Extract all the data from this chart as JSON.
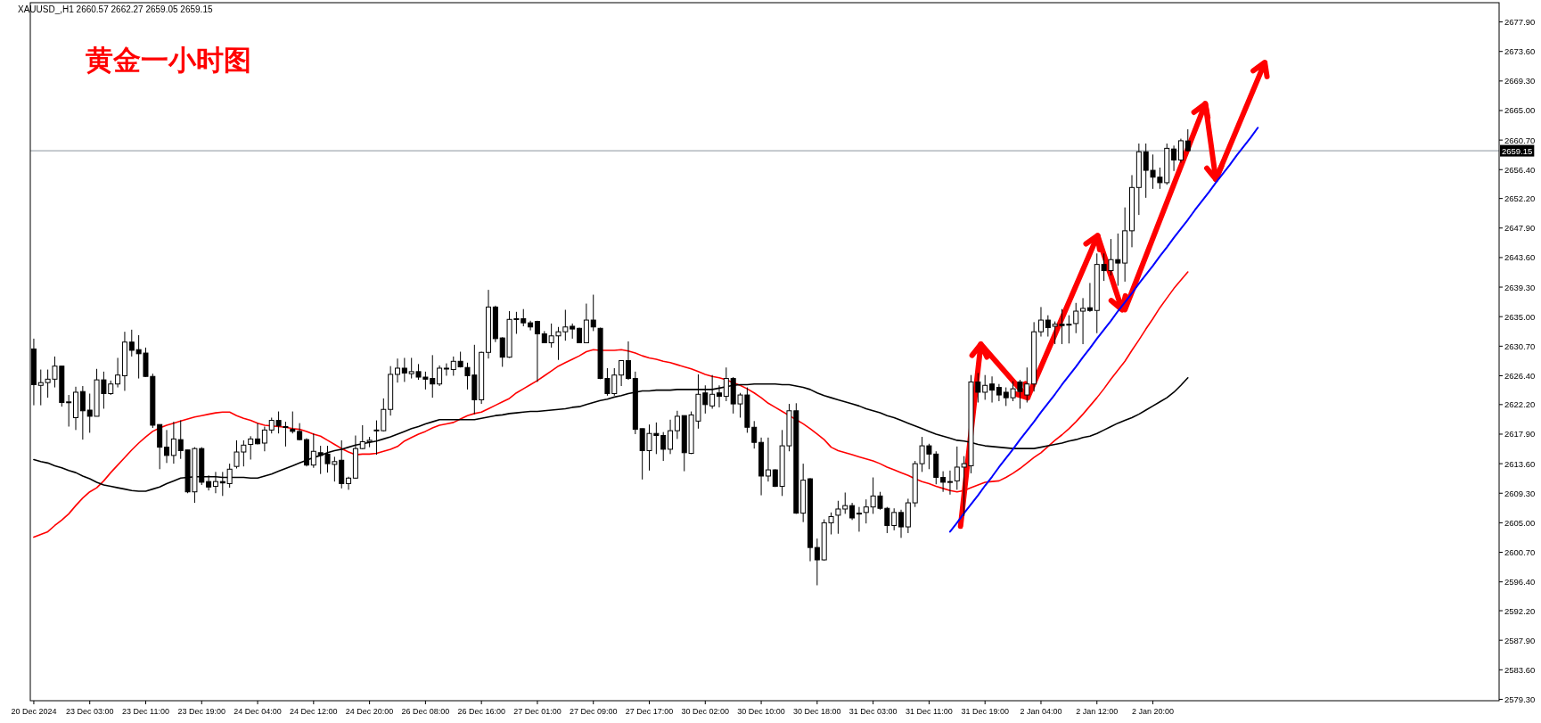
{
  "chart_data": {
    "type": "candlestick",
    "title": "黄金一小时图",
    "annotations": [
      "XAUUSD_,H1  2660.57 2662.27 2659.05 2659.15"
    ],
    "categories": [
      "20 Dec 2024",
      null,
      null,
      null,
      null,
      null,
      null,
      null,
      "23 Dec 03:00",
      null,
      null,
      null,
      null,
      null,
      null,
      null,
      "23 Dec 11:00",
      null,
      null,
      null,
      null,
      null,
      null,
      null,
      "23 Dec 19:00",
      null,
      null,
      null,
      null,
      null,
      null,
      null,
      "24 Dec 04:00",
      null,
      null,
      null,
      null,
      null,
      null,
      null,
      "24 Dec 12:00",
      null,
      null,
      null,
      null,
      null,
      null,
      null,
      "24 Dec 20:00",
      null,
      null,
      null,
      null,
      null,
      null,
      null,
      "26 Dec 08:00",
      null,
      null,
      null,
      null,
      null,
      null,
      null,
      "26 Dec 16:00",
      null,
      null,
      null,
      null,
      null,
      null,
      null,
      "27 Dec 01:00",
      null,
      null,
      null,
      null,
      null,
      null,
      null,
      "27 Dec 09:00",
      null,
      null,
      null,
      null,
      null,
      null,
      null,
      "27 Dec 17:00",
      null,
      null,
      null,
      null,
      null,
      null,
      null,
      "30 Dec 02:00",
      null,
      null,
      null,
      null,
      null,
      null,
      null,
      "30 Dec 10:00",
      null,
      null,
      null,
      null,
      null,
      null,
      null,
      "30 Dec 18:00",
      null,
      null,
      null,
      null,
      null,
      null,
      null,
      "31 Dec 03:00",
      null,
      null,
      null,
      null,
      null,
      null,
      null,
      "31 Dec 11:00",
      null,
      null,
      null,
      null,
      null,
      null,
      null,
      "31 Dec 19:00",
      null,
      null,
      null,
      null,
      null,
      null,
      null,
      "2 Jan 04:00",
      null,
      null,
      null,
      null,
      null,
      null,
      null,
      "2 Jan 12:00",
      null,
      null,
      null,
      null,
      null,
      null,
      null,
      "2 Jan 20:00",
      null,
      null,
      null,
      null,
      null,
      null,
      null,
      null,
      null,
      null,
      null,
      null,
      null,
      null,
      null,
      null,
      null,
      null,
      null,
      null,
      null,
      null,
      null,
      null,
      null,
      null,
      null,
      null,
      null,
      null,
      null,
      null,
      null,
      null,
      null,
      null,
      null,
      null,
      null,
      null,
      null,
      null,
      null,
      null,
      null,
      null,
      null,
      null,
      null
    ],
    "ohlc": [
      [
        2630.3,
        2631.8,
        2622.1,
        2625.1
      ],
      [
        2625.0,
        2627.3,
        2622.1,
        2625.4
      ],
      [
        2625.4,
        2627.3,
        2623.2,
        2625.9
      ],
      [
        2625.9,
        2629.2,
        2624.7,
        2627.8
      ],
      [
        2627.8,
        2627.8,
        2621.9,
        2622.5
      ],
      [
        2622.6,
        2623.6,
        2619.0,
        2622.6
      ],
      [
        2620.3,
        2624.8,
        2618.5,
        2624.0
      ],
      [
        2624.1,
        2624.9,
        2617.1,
        2621.3
      ],
      [
        2621.4,
        2623.8,
        2618.1,
        2620.5
      ],
      [
        2620.5,
        2627.4,
        2620.5,
        2625.8
      ],
      [
        2625.8,
        2627.0,
        2621.6,
        2623.8
      ],
      [
        2623.8,
        2625.7,
        2623.6,
        2625.2
      ],
      [
        2625.2,
        2629.0,
        2624.7,
        2626.5
      ],
      [
        2626.4,
        2632.8,
        2624.2,
        2631.3
      ],
      [
        2631.3,
        2633.1,
        2629.2,
        2630.1
      ],
      [
        2630.2,
        2632.3,
        2626.0,
        2629.6
      ],
      [
        2629.7,
        2630.5,
        2626.2,
        2626.3
      ],
      [
        2626.3,
        2626.7,
        2618.8,
        2619.2
      ],
      [
        2619.3,
        2619.3,
        2612.8,
        2616.0
      ],
      [
        2616.0,
        2618.5,
        2613.7,
        2614.8
      ],
      [
        2614.8,
        2619.7,
        2613.6,
        2617.2
      ],
      [
        2617.1,
        2619.9,
        2614.3,
        2615.5
      ],
      [
        2615.6,
        2615.6,
        2609.3,
        2609.5
      ],
      [
        2609.5,
        2616.0,
        2607.9,
        2615.8
      ],
      [
        2615.8,
        2616.0,
        2610.5,
        2610.9
      ],
      [
        2611.0,
        2611.9,
        2609.7,
        2610.2
      ],
      [
        2610.3,
        2612.4,
        2609.3,
        2611.0
      ],
      [
        2611.0,
        2612.4,
        2608.9,
        2610.8
      ],
      [
        2610.7,
        2613.6,
        2610.1,
        2612.8
      ],
      [
        2613.2,
        2617.0,
        2612.9,
        2615.3
      ],
      [
        2615.3,
        2617.0,
        2613.2,
        2616.3
      ],
      [
        2616.4,
        2617.6,
        2614.2,
        2617.2
      ],
      [
        2617.2,
        2619.5,
        2616.4,
        2616.5
      ],
      [
        2616.6,
        2619.0,
        2615.4,
        2618.5
      ],
      [
        2618.5,
        2620.3,
        2618.0,
        2619.9
      ],
      [
        2619.9,
        2621.2,
        2618.0,
        2619.1
      ],
      [
        2619.0,
        2619.7,
        2616.1,
        2619.0
      ],
      [
        2618.6,
        2621.2,
        2618.0,
        2618.3
      ],
      [
        2618.3,
        2619.5,
        2617.0,
        2617.1
      ],
      [
        2617.1,
        2617.3,
        2613.2,
        2613.4
      ],
      [
        2613.4,
        2618.0,
        2613.0,
        2615.4
      ],
      [
        2615.2,
        2616.2,
        2612.1,
        2614.8
      ],
      [
        2615.0,
        2616.2,
        2612.3,
        2613.6
      ],
      [
        2613.5,
        2614.6,
        2611.0,
        2613.9
      ],
      [
        2614.1,
        2617.0,
        2610.0,
        2610.7
      ],
      [
        2610.7,
        2611.7,
        2609.8,
        2611.5
      ],
      [
        2611.5,
        2617.7,
        2611.4,
        2615.8
      ],
      [
        2615.8,
        2619.2,
        2615.7,
        2616.8
      ],
      [
        2616.8,
        2617.5,
        2616.0,
        2617.0
      ],
      [
        2618.4,
        2619.9,
        2614.9,
        2618.5
      ],
      [
        2618.4,
        2623.1,
        2618.3,
        2621.5
      ],
      [
        2621.5,
        2627.8,
        2620.6,
        2626.6
      ],
      [
        2626.6,
        2628.9,
        2625.4,
        2627.5
      ],
      [
        2627.5,
        2629.0,
        2625.5,
        2626.8
      ],
      [
        2626.7,
        2629.0,
        2626.0,
        2627.0
      ],
      [
        2627.0,
        2628.1,
        2625.8,
        2626.2
      ],
      [
        2626.2,
        2627.0,
        2624.4,
        2625.9
      ],
      [
        2626.0,
        2629.4,
        2623.2,
        2625.2
      ],
      [
        2625.2,
        2627.9,
        2624.9,
        2627.5
      ],
      [
        2627.4,
        2628.2,
        2626.4,
        2627.5
      ],
      [
        2627.3,
        2629.2,
        2626.4,
        2628.5
      ],
      [
        2628.5,
        2629.9,
        2627.6,
        2627.7
      ],
      [
        2627.6,
        2628.3,
        2624.4,
        2626.4
      ],
      [
        2626.5,
        2630.9,
        2620.8,
        2622.9
      ],
      [
        2622.9,
        2629.9,
        2622.3,
        2629.8
      ],
      [
        2629.8,
        2638.9,
        2628.9,
        2636.4
      ],
      [
        2636.4,
        2636.6,
        2631.3,
        2631.8
      ],
      [
        2631.9,
        2632.0,
        2627.7,
        2629.1
      ],
      [
        2629.1,
        2635.8,
        2629.0,
        2634.6
      ],
      [
        2634.7,
        2635.7,
        2632.5,
        2634.7
      ],
      [
        2634.7,
        2636.1,
        2633.6,
        2634.1
      ],
      [
        2634.1,
        2634.4,
        2633.0,
        2633.5
      ],
      [
        2634.3,
        2634.4,
        2625.5,
        2632.5
      ],
      [
        2632.5,
        2632.9,
        2631.2,
        2631.2
      ],
      [
        2631.2,
        2634.0,
        2630.5,
        2632.2
      ],
      [
        2632.2,
        2633.5,
        2628.7,
        2632.8
      ],
      [
        2632.8,
        2636.0,
        2631.5,
        2633.5
      ],
      [
        2633.6,
        2634.0,
        2631.8,
        2633.2
      ],
      [
        2633.3,
        2633.4,
        2631.2,
        2631.2
      ],
      [
        2631.2,
        2636.9,
        2631.2,
        2634.5
      ],
      [
        2634.5,
        2638.2,
        2632.9,
        2633.5
      ],
      [
        2633.3,
        2633.4,
        2625.9,
        2626.0
      ],
      [
        2626.0,
        2627.5,
        2623.5,
        2623.8
      ],
      [
        2623.8,
        2627.5,
        2623.5,
        2626.5
      ],
      [
        2626.5,
        2628.6,
        2624.9,
        2628.6
      ],
      [
        2628.6,
        2631.4,
        2625.8,
        2626.0
      ],
      [
        2626.0,
        2627.0,
        2617.9,
        2618.6
      ],
      [
        2618.7,
        2618.7,
        2611.3,
        2615.5
      ],
      [
        2615.5,
        2619.3,
        2612.6,
        2618.0
      ],
      [
        2618.0,
        2619.6,
        2615.0,
        2617.7
      ],
      [
        2617.7,
        2618.2,
        2614.0,
        2615.7
      ],
      [
        2615.7,
        2620.0,
        2615.0,
        2618.4
      ],
      [
        2618.4,
        2621.3,
        2617.2,
        2620.5
      ],
      [
        2620.6,
        2620.6,
        2612.5,
        2615.2
      ],
      [
        2615.1,
        2621.2,
        2615.0,
        2620.7
      ],
      [
        2619.8,
        2626.6,
        2618.7,
        2623.7
      ],
      [
        2623.9,
        2625.0,
        2620.9,
        2622.2
      ],
      [
        2622.0,
        2626.5,
        2621.6,
        2623.7
      ],
      [
        2623.9,
        2625.0,
        2621.8,
        2623.4
      ],
      [
        2623.4,
        2627.6,
        2622.7,
        2626.0
      ],
      [
        2626.0,
        2626.2,
        2620.9,
        2622.3
      ],
      [
        2622.3,
        2623.9,
        2620.3,
        2623.6
      ],
      [
        2623.6,
        2624.7,
        2618.1,
        2618.9
      ],
      [
        2618.9,
        2619.8,
        2615.8,
        2616.7
      ],
      [
        2616.7,
        2617.4,
        2609.0,
        2611.8
      ],
      [
        2611.8,
        2617.4,
        2611.0,
        2612.7
      ],
      [
        2612.7,
        2612.8,
        2610.2,
        2610.3
      ],
      [
        2610.3,
        2618.5,
        2608.9,
        2616.2
      ],
      [
        2616.2,
        2622.3,
        2615.4,
        2621.3
      ],
      [
        2621.3,
        2622.4,
        2606.3,
        2606.4
      ],
      [
        2606.4,
        2613.6,
        2605.1,
        2611.2
      ],
      [
        2611.4,
        2611.5,
        2599.4,
        2601.4
      ],
      [
        2601.4,
        2602.7,
        2595.9,
        2599.6
      ],
      [
        2599.6,
        2605.5,
        2599.5,
        2605.0
      ],
      [
        2605.0,
        2606.5,
        2603.3,
        2605.9
      ],
      [
        2606.1,
        2608.2,
        2603.4,
        2607.0
      ],
      [
        2607.0,
        2609.4,
        2606.3,
        2607.5
      ],
      [
        2607.5,
        2607.9,
        2605.4,
        2605.7
      ],
      [
        2606.4,
        2607.3,
        2603.7,
        2606.4
      ],
      [
        2606.5,
        2608.4,
        2604.9,
        2607.3
      ],
      [
        2607.3,
        2611.6,
        2606.3,
        2608.9
      ],
      [
        2608.9,
        2609.5,
        2606.9,
        2607.1
      ],
      [
        2607.1,
        2607.3,
        2603.5,
        2604.6
      ],
      [
        2604.6,
        2607.1,
        2603.9,
        2606.5
      ],
      [
        2606.5,
        2606.9,
        2602.8,
        2604.4
      ],
      [
        2604.4,
        2608.5,
        2603.5,
        2607.9
      ],
      [
        2607.9,
        2614.0,
        2607.3,
        2613.6
      ],
      [
        2613.6,
        2617.5,
        2612.4,
        2616.2
      ],
      [
        2616.2,
        2616.5,
        2612.8,
        2615.0
      ],
      [
        2615.0,
        2615.4,
        2610.6,
        2611.6
      ],
      [
        2611.6,
        2612.5,
        2609.5,
        2610.9
      ],
      [
        2610.9,
        2612.6,
        2609.1,
        2611.0
      ],
      [
        2611.1,
        2616.1,
        2609.8,
        2613.1
      ],
      [
        2613.1,
        2614.7,
        2606.0,
        2613.6
      ],
      [
        2613.3,
        2626.5,
        2612.2,
        2625.5
      ],
      [
        2625.5,
        2626.8,
        2622.5,
        2624.0
      ],
      [
        2624.0,
        2626.5,
        2622.9,
        2625.0
      ],
      [
        2625.2,
        2626.3,
        2622.5,
        2624.3
      ],
      [
        2624.7,
        2625.2,
        2622.7,
        2623.6
      ],
      [
        2624.0,
        2624.7,
        2622.0,
        2623.2
      ],
      [
        2623.2,
        2625.6,
        2622.7,
        2624.5
      ],
      [
        2625.5,
        2625.8,
        2621.6,
        2624.1
      ],
      [
        2623.6,
        2627.6,
        2622.5,
        2625.2
      ],
      [
        2625.2,
        2634.2,
        2624.1,
        2632.8
      ],
      [
        2632.8,
        2636.4,
        2632.1,
        2634.5
      ],
      [
        2634.5,
        2635.2,
        2632.1,
        2633.4
      ],
      [
        2633.6,
        2634.3,
        2631.0,
        2633.9
      ],
      [
        2633.9,
        2636.1,
        2631.0,
        2633.7
      ],
      [
        2633.8,
        2635.2,
        2631.1,
        2633.9
      ],
      [
        2634.0,
        2637.0,
        2632.6,
        2635.8
      ],
      [
        2635.8,
        2637.7,
        2631.0,
        2636.2
      ],
      [
        2636.3,
        2639.9,
        2635.7,
        2635.9
      ],
      [
        2635.9,
        2644.2,
        2632.6,
        2642.6
      ],
      [
        2642.6,
        2644.2,
        2640.2,
        2641.7
      ],
      [
        2641.7,
        2646.3,
        2641.0,
        2643.3
      ],
      [
        2643.3,
        2647.1,
        2639.5,
        2642.8
      ],
      [
        2642.8,
        2650.9,
        2640.1,
        2647.5
      ],
      [
        2647.5,
        2655.6,
        2645.1,
        2653.8
      ],
      [
        2653.8,
        2660.2,
        2649.8,
        2659.0
      ],
      [
        2659.0,
        2660.2,
        2652.3,
        2656.3
      ],
      [
        2656.3,
        2658.6,
        2653.6,
        2655.3
      ],
      [
        2655.3,
        2656.7,
        2653.6,
        2654.5
      ],
      [
        2654.5,
        2660.2,
        2654.2,
        2659.5
      ],
      [
        2659.4,
        2659.9,
        2656.2,
        2657.8
      ],
      [
        2657.8,
        2660.9,
        2657.4,
        2660.6
      ],
      [
        2660.57,
        2662.27,
        2659.05,
        2659.15
      ],
      null,
      null,
      null,
      null,
      null,
      null,
      null,
      null,
      null,
      null,
      null,
      null,
      null,
      null,
      null,
      null,
      null,
      null,
      null,
      null,
      null,
      null,
      null,
      null,
      null,
      null,
      null,
      null,
      null,
      null,
      null,
      null,
      null,
      null,
      null,
      null,
      null,
      null,
      null,
      null,
      null,
      null,
      null,
      null
    ],
    "series": [
      {
        "type": "line",
        "color": "#ff0000",
        "values": [
          2602.9,
          2603.3,
          2603.7,
          2604.6,
          2605.4,
          2606.3,
          2607.5,
          2608.6,
          2609.5,
          2610.1,
          2611.1,
          2612.3,
          2613.4,
          2614.5,
          2615.6,
          2616.6,
          2617.5,
          2618.3,
          2618.8,
          2619.2,
          2619.5,
          2619.8,
          2620.1,
          2620.4,
          2620.6,
          2620.8,
          2621.0,
          2621.1,
          2621.1,
          2620.6,
          2620.2,
          2619.9,
          2619.5,
          2619.2,
          2619.1,
          2619.0,
          2618.9,
          2618.7,
          2618.6,
          2618.3,
          2617.9,
          2617.6,
          2617.0,
          2616.4,
          2615.8,
          2615.3,
          2614.9,
          2615.0,
          2615.0,
          2615.1,
          2615.4,
          2615.7,
          2616.1,
          2616.9,
          2617.4,
          2617.9,
          2618.3,
          2618.8,
          2619.2,
          2619.4,
          2619.6,
          2620.1,
          2620.6,
          2620.9,
          2621.1,
          2621.6,
          2622.1,
          2622.6,
          2623.1,
          2623.9,
          2624.5,
          2625.1,
          2625.7,
          2626.4,
          2627.1,
          2627.8,
          2628.3,
          2628.8,
          2629.3,
          2629.9,
          2630.2,
          2630.1,
          2630.1,
          2630.1,
          2630.2,
          2630.0,
          2629.7,
          2629.3,
          2629.0,
          2628.8,
          2628.5,
          2628.3,
          2628.0,
          2627.7,
          2627.4,
          2627.0,
          2626.6,
          2626.3,
          2626.1,
          2625.8,
          2625.4,
          2625.0,
          2624.5,
          2623.9,
          2623.2,
          2622.4,
          2621.8,
          2621.2,
          2620.6,
          2620.0,
          2619.4,
          2618.7,
          2617.9,
          2617.1,
          2616.0,
          2615.5,
          2615.2,
          2614.9,
          2614.6,
          2614.3,
          2614.0,
          2613.6,
          2613.1,
          2612.7,
          2612.3,
          2611.9,
          2611.4,
          2611.0,
          2610.7,
          2610.3,
          2610.0,
          2609.7,
          2609.5,
          2609.7,
          2610.1,
          2610.5,
          2610.9,
          2611.0,
          2611.1,
          2611.6,
          2612.2,
          2612.9,
          2613.7,
          2614.5,
          2615.2,
          2616.1,
          2617.0,
          2617.8,
          2618.7,
          2619.7,
          2620.8,
          2622.0,
          2623.2,
          2624.5,
          2625.9,
          2627.2,
          2628.5,
          2630.1,
          2631.6,
          2633.2,
          2634.7,
          2636.3,
          2637.7,
          2639.1,
          2640.3,
          2641.5,
          null,
          null,
          null,
          null,
          null,
          null,
          null,
          null,
          null,
          null,
          null,
          null,
          null,
          null,
          null,
          null,
          null,
          null,
          null,
          null,
          null,
          null,
          null,
          null,
          null,
          null,
          null,
          null,
          null,
          null,
          null,
          null,
          null,
          null,
          null,
          null,
          null,
          null,
          null,
          null,
          null,
          null,
          null,
          null
        ]
      },
      {
        "type": "line",
        "color": "#000000",
        "values": [
          2614.2,
          2613.9,
          2613.7,
          2613.3,
          2613.0,
          2612.6,
          2612.3,
          2611.8,
          2611.4,
          2610.9,
          2610.5,
          2610.3,
          2610.1,
          2609.9,
          2609.7,
          2609.6,
          2609.6,
          2609.9,
          2610.2,
          2610.7,
          2611.1,
          2611.5,
          2611.6,
          2611.7,
          2611.7,
          2611.7,
          2611.7,
          2611.6,
          2611.6,
          2611.6,
          2611.6,
          2611.5,
          2611.5,
          2611.8,
          2612.1,
          2612.5,
          2612.9,
          2613.3,
          2613.7,
          2614.1,
          2614.5,
          2614.8,
          2615.2,
          2615.5,
          2615.7,
          2616.0,
          2616.3,
          2616.5,
          2616.7,
          2616.9,
          2617.2,
          2617.5,
          2617.9,
          2618.3,
          2618.7,
          2619.0,
          2619.4,
          2619.7,
          2620.0,
          2620.0,
          2620.0,
          2620.0,
          2620.0,
          2620.0,
          2620.2,
          2620.4,
          2620.6,
          2620.7,
          2620.9,
          2621.0,
          2621.1,
          2621.2,
          2621.2,
          2621.3,
          2621.4,
          2621.5,
          2621.6,
          2621.8,
          2621.9,
          2622.2,
          2622.5,
          2622.8,
          2623.0,
          2623.3,
          2623.5,
          2623.8,
          2624.0,
          2624.2,
          2624.2,
          2624.3,
          2624.3,
          2624.3,
          2624.4,
          2624.4,
          2624.4,
          2624.4,
          2624.4,
          2624.4,
          2624.6,
          2624.8,
          2625.0,
          2625.1,
          2625.1,
          2625.2,
          2625.2,
          2625.2,
          2625.2,
          2625.1,
          2625.1,
          2624.9,
          2624.7,
          2624.4,
          2623.9,
          2623.5,
          2623.2,
          2622.9,
          2622.6,
          2622.3,
          2622.0,
          2621.6,
          2621.3,
          2621.0,
          2620.6,
          2620.3,
          2619.9,
          2619.5,
          2619.1,
          2618.7,
          2618.3,
          2617.9,
          2617.6,
          2617.3,
          2617.0,
          2616.9,
          2616.7,
          2616.4,
          2616.2,
          2616.1,
          2616.0,
          2615.9,
          2615.8,
          2615.8,
          2615.8,
          2615.8,
          2616.0,
          2616.2,
          2616.4,
          2616.6,
          2616.9,
          2617.1,
          2617.4,
          2617.6,
          2618.0,
          2618.5,
          2619.0,
          2619.5,
          2619.9,
          2620.3,
          2620.8,
          2621.4,
          2622.0,
          2622.6,
          2623.2,
          2624.0,
          2625.0,
          2626.1,
          null,
          null,
          null,
          null,
          null,
          null,
          null,
          null,
          null,
          null,
          null,
          null,
          null,
          null,
          null,
          null,
          null,
          null,
          null,
          null,
          null,
          null,
          null,
          null,
          null,
          null,
          null,
          null,
          null,
          null,
          null,
          null,
          null,
          null,
          null,
          null,
          null,
          null,
          null,
          null,
          null,
          null,
          null,
          null
        ]
      },
      {
        "type": "line",
        "color": "#0000ff",
        "values": [
          null,
          null,
          null,
          null,
          null,
          null,
          null,
          null,
          null,
          null,
          null,
          null,
          null,
          null,
          null,
          null,
          null,
          null,
          null,
          null,
          null,
          null,
          null,
          null,
          null,
          null,
          null,
          null,
          null,
          null,
          null,
          null,
          null,
          null,
          null,
          null,
          null,
          null,
          null,
          null,
          null,
          null,
          null,
          null,
          null,
          null,
          null,
          null,
          null,
          null,
          null,
          null,
          null,
          null,
          null,
          null,
          null,
          null,
          null,
          null,
          null,
          null,
          null,
          null,
          null,
          null,
          null,
          null,
          null,
          null,
          null,
          null,
          null,
          null,
          null,
          null,
          null,
          null,
          null,
          null,
          null,
          null,
          null,
          null,
          null,
          null,
          null,
          null,
          null,
          null,
          null,
          null,
          null,
          null,
          null,
          null,
          null,
          null,
          null,
          null,
          null,
          null,
          null,
          null,
          null,
          null,
          null,
          null,
          null,
          null,
          null,
          null,
          null,
          null,
          null,
          null,
          null,
          null,
          null,
          null,
          null,
          null,
          null,
          null,
          null,
          null,
          null,
          null,
          null,
          null,
          null,
          2603.7,
          2605.0,
          2606.4,
          2607.7,
          2609.0,
          2610.4,
          2611.7,
          2613.1,
          2614.4,
          2615.7,
          2617.1,
          2618.4,
          2619.7,
          2621.1,
          2622.4,
          2623.7,
          2625.1,
          2626.4,
          2627.7,
          2629.1,
          2630.4,
          2631.8,
          2633.1,
          2634.4,
          2635.8,
          2637.1,
          2638.4,
          2639.8,
          2641.1,
          2642.4,
          2643.8,
          2645.1,
          2646.5,
          2647.8,
          2649.1,
          2650.5,
          2651.8,
          2653.1,
          2654.5,
          2655.8,
          2657.1,
          2658.5,
          2659.8,
          2661.1,
          2662.5,
          null,
          null,
          null,
          null,
          null,
          null,
          null,
          null,
          null,
          null,
          null,
          null,
          null,
          null,
          null,
          null,
          null,
          null,
          null,
          null,
          null,
          null,
          null,
          null,
          null,
          null,
          null,
          null,
          null,
          null,
          null,
          null,
          null,
          null
        ]
      }
    ],
    "ylim": [
      2579.1,
      2680.7
    ],
    "yticks": [
      {
        "value": 2579.3,
        "label": "2579.30"
      },
      {
        "value": 2583.6,
        "label": "2583.60"
      },
      {
        "value": 2587.9,
        "label": "2587.90"
      },
      {
        "value": 2592.2,
        "label": "2592.20"
      },
      {
        "value": 2596.4,
        "label": "2596.40"
      },
      {
        "value": 2600.7,
        "label": "2600.70"
      },
      {
        "value": 2605.0,
        "label": "2605.00"
      },
      {
        "value": 2609.3,
        "label": "2609.30"
      },
      {
        "value": 2613.6,
        "label": "2613.60"
      },
      {
        "value": 2617.9,
        "label": "2617.90"
      },
      {
        "value": 2622.2,
        "label": "2622.20"
      },
      {
        "value": 2626.4,
        "label": "2626.40"
      },
      {
        "value": 2630.7,
        "label": "2630.70"
      },
      {
        "value": 2635.0,
        "label": "2635.00"
      },
      {
        "value": 2639.3,
        "label": "2639.30"
      },
      {
        "value": 2643.6,
        "label": "2643.60"
      },
      {
        "value": 2647.9,
        "label": "2647.90"
      },
      {
        "value": 2652.2,
        "label": "2652.20"
      },
      {
        "value": 2656.4,
        "label": "2656.40"
      },
      {
        "value": 2660.7,
        "label": "2660.70"
      },
      {
        "value": 2665.0,
        "label": "2665.00"
      },
      {
        "value": 2669.3,
        "label": "2669.30"
      },
      {
        "value": 2673.6,
        "label": "2673.60"
      },
      {
        "value": 2677.9,
        "label": "2677.90"
      }
    ],
    "ref_lines": [
      {
        "axis": "y",
        "value": 2659.15,
        "label": "2659.15",
        "color": "#8a949e"
      }
    ]
  }
}
